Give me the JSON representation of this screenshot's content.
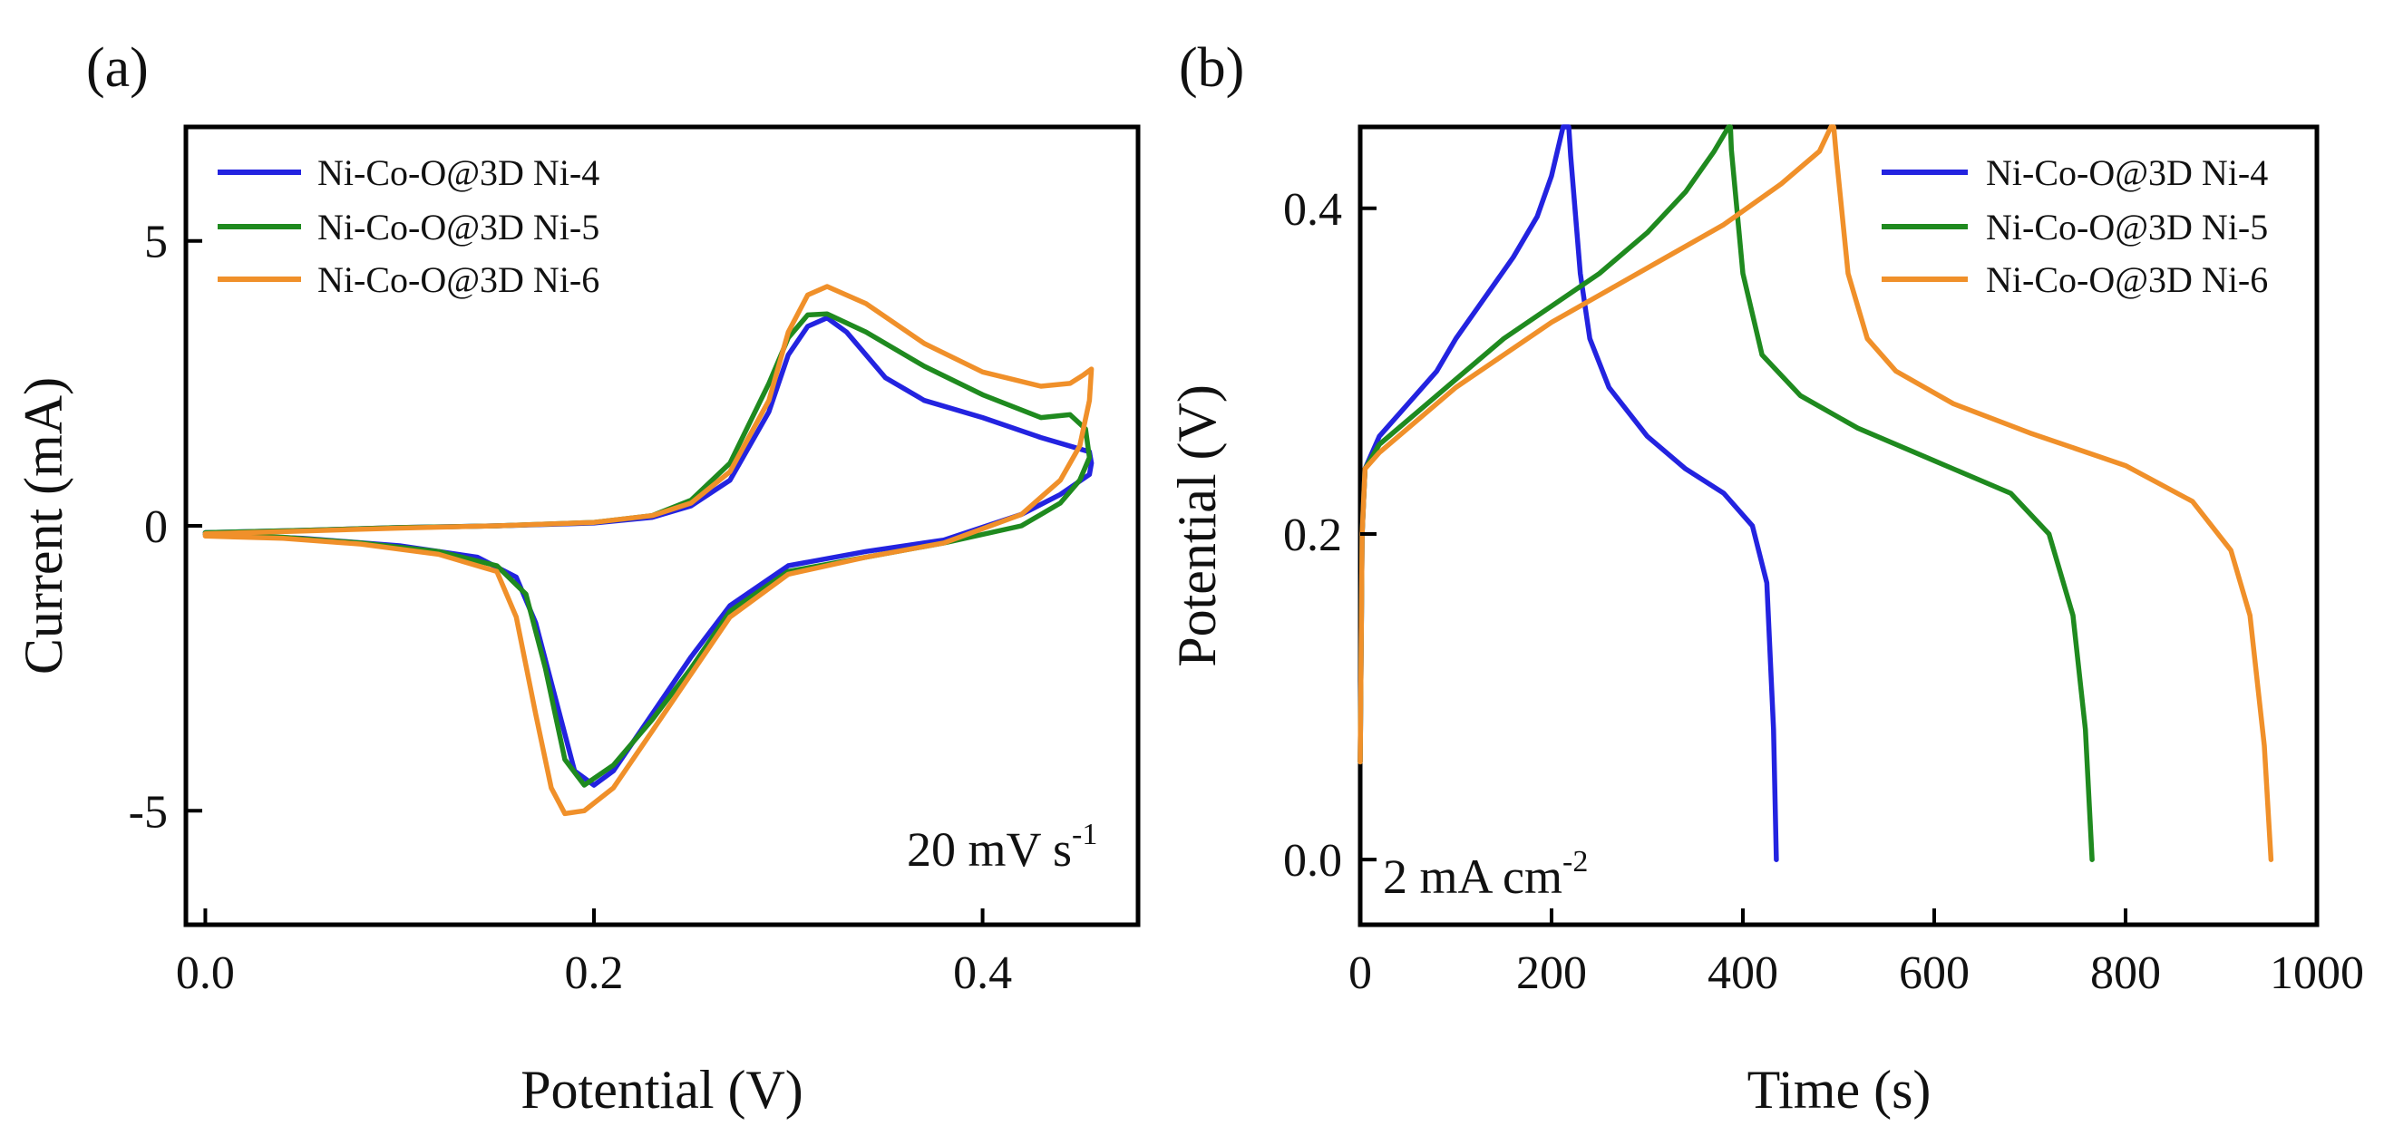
{
  "figure": {
    "panel_a_label": "(a)",
    "panel_b_label": "(b)"
  },
  "chart_data": [
    {
      "panel": "(a)",
      "type": "line",
      "xlabel": "Potential (V)",
      "ylabel": "Current (mA)",
      "xlim": [
        -0.01,
        0.48
      ],
      "ylim": [
        -7,
        7
      ],
      "xticks": [
        0.0,
        0.2,
        0.4
      ],
      "xtick_labels": [
        "0.0",
        "0.2",
        "0.4"
      ],
      "yticks": [
        -5,
        0,
        5
      ],
      "ytick_labels": [
        "-5",
        "0",
        "5"
      ],
      "legend_position": "top-left",
      "annotation": {
        "text": "20 mV s",
        "superscript": "-1",
        "position": "bottom-right"
      },
      "series": [
        {
          "name": "Ni-Co-O@3D Ni-4",
          "color": "#2323e0",
          "points": [
            [
              0.0,
              -0.12
            ],
            [
              0.05,
              -0.08
            ],
            [
              0.1,
              -0.03
            ],
            [
              0.15,
              0.0
            ],
            [
              0.2,
              0.05
            ],
            [
              0.23,
              0.15
            ],
            [
              0.25,
              0.35
            ],
            [
              0.27,
              0.8
            ],
            [
              0.29,
              2.0
            ],
            [
              0.3,
              3.0
            ],
            [
              0.31,
              3.5
            ],
            [
              0.32,
              3.65
            ],
            [
              0.33,
              3.4
            ],
            [
              0.35,
              2.6
            ],
            [
              0.37,
              2.2
            ],
            [
              0.4,
              1.9
            ],
            [
              0.43,
              1.55
            ],
            [
              0.455,
              1.3
            ],
            [
              0.456,
              1.1
            ],
            [
              0.455,
              0.9
            ],
            [
              0.44,
              0.55
            ],
            [
              0.42,
              0.2
            ],
            [
              0.38,
              -0.25
            ],
            [
              0.34,
              -0.45
            ],
            [
              0.3,
              -0.7
            ],
            [
              0.27,
              -1.4
            ],
            [
              0.25,
              -2.3
            ],
            [
              0.23,
              -3.3
            ],
            [
              0.21,
              -4.3
            ],
            [
              0.2,
              -4.55
            ],
            [
              0.19,
              -4.3
            ],
            [
              0.18,
              -3.0
            ],
            [
              0.17,
              -1.7
            ],
            [
              0.16,
              -0.9
            ],
            [
              0.14,
              -0.55
            ],
            [
              0.1,
              -0.35
            ],
            [
              0.05,
              -0.22
            ],
            [
              0.0,
              -0.15
            ]
          ]
        },
        {
          "name": "Ni-Co-O@3D Ni-5",
          "color": "#1f8a1f",
          "points": [
            [
              0.0,
              -0.12
            ],
            [
              0.05,
              -0.08
            ],
            [
              0.1,
              -0.03
            ],
            [
              0.15,
              0.0
            ],
            [
              0.2,
              0.06
            ],
            [
              0.23,
              0.18
            ],
            [
              0.25,
              0.45
            ],
            [
              0.27,
              1.1
            ],
            [
              0.29,
              2.5
            ],
            [
              0.3,
              3.3
            ],
            [
              0.31,
              3.7
            ],
            [
              0.32,
              3.72
            ],
            [
              0.34,
              3.4
            ],
            [
              0.37,
              2.8
            ],
            [
              0.4,
              2.3
            ],
            [
              0.43,
              1.9
            ],
            [
              0.445,
              1.95
            ],
            [
              0.453,
              1.7
            ],
            [
              0.455,
              1.2
            ],
            [
              0.45,
              0.8
            ],
            [
              0.44,
              0.4
            ],
            [
              0.42,
              0.0
            ],
            [
              0.38,
              -0.3
            ],
            [
              0.34,
              -0.55
            ],
            [
              0.3,
              -0.8
            ],
            [
              0.27,
              -1.5
            ],
            [
              0.25,
              -2.5
            ],
            [
              0.23,
              -3.4
            ],
            [
              0.21,
              -4.2
            ],
            [
              0.195,
              -4.55
            ],
            [
              0.185,
              -4.1
            ],
            [
              0.175,
              -2.5
            ],
            [
              0.165,
              -1.2
            ],
            [
              0.15,
              -0.7
            ],
            [
              0.12,
              -0.45
            ],
            [
              0.08,
              -0.3
            ],
            [
              0.04,
              -0.2
            ],
            [
              0.0,
              -0.15
            ]
          ]
        },
        {
          "name": "Ni-Co-O@3D Ni-6",
          "color": "#f0902a",
          "points": [
            [
              0.0,
              -0.14
            ],
            [
              0.05,
              -0.09
            ],
            [
              0.1,
              -0.04
            ],
            [
              0.15,
              0.0
            ],
            [
              0.2,
              0.06
            ],
            [
              0.23,
              0.18
            ],
            [
              0.25,
              0.4
            ],
            [
              0.27,
              0.95
            ],
            [
              0.29,
              2.2
            ],
            [
              0.3,
              3.4
            ],
            [
              0.31,
              4.05
            ],
            [
              0.32,
              4.2
            ],
            [
              0.34,
              3.9
            ],
            [
              0.37,
              3.2
            ],
            [
              0.4,
              2.7
            ],
            [
              0.43,
              2.45
            ],
            [
              0.445,
              2.5
            ],
            [
              0.452,
              2.65
            ],
            [
              0.456,
              2.75
            ],
            [
              0.455,
              2.2
            ],
            [
              0.45,
              1.4
            ],
            [
              0.44,
              0.8
            ],
            [
              0.42,
              0.2
            ],
            [
              0.38,
              -0.3
            ],
            [
              0.34,
              -0.55
            ],
            [
              0.3,
              -0.85
            ],
            [
              0.27,
              -1.6
            ],
            [
              0.25,
              -2.6
            ],
            [
              0.23,
              -3.6
            ],
            [
              0.21,
              -4.6
            ],
            [
              0.195,
              -5.0
            ],
            [
              0.185,
              -5.05
            ],
            [
              0.178,
              -4.6
            ],
            [
              0.17,
              -3.3
            ],
            [
              0.16,
              -1.6
            ],
            [
              0.15,
              -0.8
            ],
            [
              0.12,
              -0.5
            ],
            [
              0.08,
              -0.32
            ],
            [
              0.04,
              -0.22
            ],
            [
              0.0,
              -0.18
            ]
          ]
        }
      ]
    },
    {
      "panel": "(b)",
      "type": "line",
      "xlabel": "Time (s)",
      "ylabel": "Potential (V)",
      "xlim": [
        0,
        1000
      ],
      "ylim": [
        -0.04,
        0.45
      ],
      "xticks": [
        0,
        200,
        400,
        600,
        800,
        1000
      ],
      "xtick_labels": [
        "0",
        "200",
        "400",
        "600",
        "800",
        "1000"
      ],
      "yticks": [
        0.0,
        0.2,
        0.4
      ],
      "ytick_labels": [
        "0.0",
        "0.2",
        "0.4"
      ],
      "legend_position": "top-right",
      "annotation": {
        "text": "2 mA cm",
        "superscript": "-2",
        "position": "bottom-left"
      },
      "series": [
        {
          "name": "Ni-Co-O@3D Ni-4",
          "color": "#2323e0",
          "points": [
            [
              0,
              0.06
            ],
            [
              2,
              0.2
            ],
            [
              5,
              0.24
            ],
            [
              20,
              0.26
            ],
            [
              50,
              0.28
            ],
            [
              80,
              0.3
            ],
            [
              100,
              0.32
            ],
            [
              130,
              0.345
            ],
            [
              160,
              0.37
            ],
            [
              185,
              0.395
            ],
            [
              200,
              0.42
            ],
            [
              212,
              0.45
            ],
            [
              218,
              0.45
            ],
            [
              220,
              0.432
            ],
            [
              230,
              0.36
            ],
            [
              240,
              0.32
            ],
            [
              260,
              0.29
            ],
            [
              300,
              0.26
            ],
            [
              340,
              0.24
            ],
            [
              380,
              0.225
            ],
            [
              410,
              0.205
            ],
            [
              425,
              0.17
            ],
            [
              432,
              0.08
            ],
            [
              435,
              0.0
            ]
          ]
        },
        {
          "name": "Ni-Co-O@3D Ni-5",
          "color": "#1f8a1f",
          "points": [
            [
              0,
              0.06
            ],
            [
              2,
              0.2
            ],
            [
              5,
              0.24
            ],
            [
              20,
              0.255
            ],
            [
              60,
              0.275
            ],
            [
              100,
              0.295
            ],
            [
              150,
              0.32
            ],
            [
              200,
              0.34
            ],
            [
              250,
              0.36
            ],
            [
              300,
              0.385
            ],
            [
              340,
              0.41
            ],
            [
              370,
              0.435
            ],
            [
              385,
              0.45
            ],
            [
              387,
              0.45
            ],
            [
              388,
              0.436
            ],
            [
              400,
              0.36
            ],
            [
              420,
              0.31
            ],
            [
              460,
              0.285
            ],
            [
              520,
              0.265
            ],
            [
              600,
              0.245
            ],
            [
              680,
              0.225
            ],
            [
              720,
              0.2
            ],
            [
              745,
              0.15
            ],
            [
              758,
              0.08
            ],
            [
              765,
              0.0
            ]
          ]
        },
        {
          "name": "Ni-Co-O@3D Ni-6",
          "color": "#f0902a",
          "points": [
            [
              0,
              0.06
            ],
            [
              2,
              0.2
            ],
            [
              5,
              0.24
            ],
            [
              20,
              0.25
            ],
            [
              60,
              0.27
            ],
            [
              100,
              0.29
            ],
            [
              150,
              0.31
            ],
            [
              200,
              0.33
            ],
            [
              260,
              0.35
            ],
            [
              320,
              0.37
            ],
            [
              380,
              0.39
            ],
            [
              440,
              0.415
            ],
            [
              480,
              0.435
            ],
            [
              492,
              0.45
            ],
            [
              495,
              0.45
            ],
            [
              498,
              0.43
            ],
            [
              510,
              0.36
            ],
            [
              530,
              0.32
            ],
            [
              560,
              0.3
            ],
            [
              620,
              0.28
            ],
            [
              700,
              0.262
            ],
            [
              800,
              0.242
            ],
            [
              870,
              0.22
            ],
            [
              910,
              0.19
            ],
            [
              930,
              0.15
            ],
            [
              945,
              0.07
            ],
            [
              952,
              0.0
            ]
          ]
        }
      ]
    }
  ]
}
